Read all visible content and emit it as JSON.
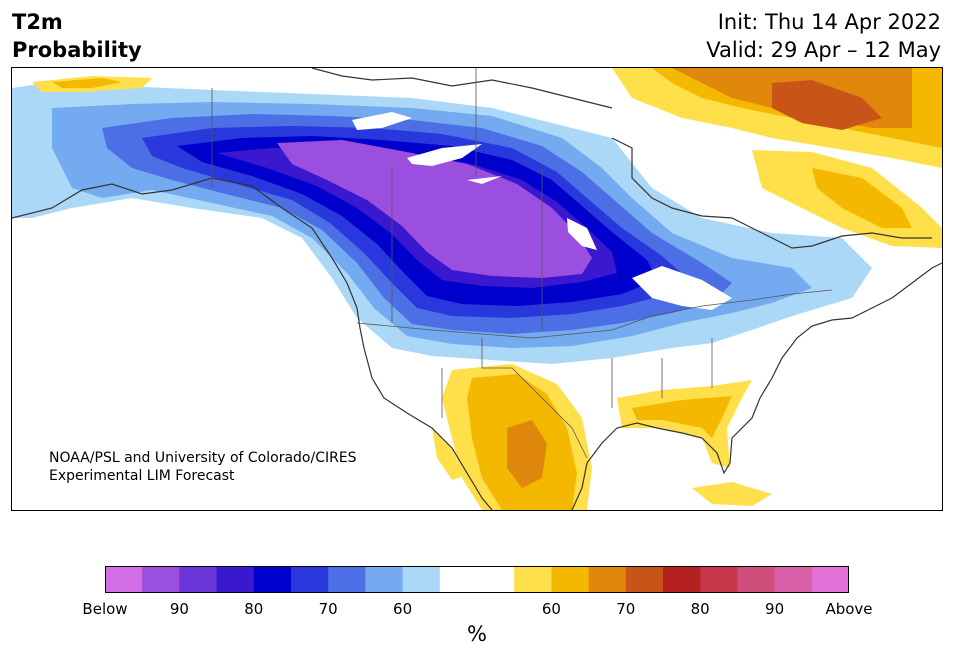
{
  "title": {
    "left_line1": "T2m",
    "left_line2": "Probability",
    "init": "Init: Thu 14 Apr 2022",
    "valid": "Valid: 29 Apr – 12 May"
  },
  "credit": {
    "line1": "NOAA/PSL and University of Colorado/CIRES",
    "line2": "Experimental LIM Forecast"
  },
  "colorbar": {
    "unit": "%",
    "colors": [
      "#d26ee6",
      "#9b4fdf",
      "#6a35d6",
      "#3a18d0",
      "#0000cc",
      "#2838dc",
      "#4d6fe6",
      "#74aaef",
      "#acd8f8",
      "#ffffff",
      "#ffffff",
      "#ffe04a",
      "#f5b800",
      "#e0880c",
      "#c85418",
      "#b42020",
      "#c43648",
      "#cf4e7c",
      "#d95fa8",
      "#e372d8"
    ],
    "ticks": [
      "Below",
      "90",
      "80",
      "70",
      "60",
      "60",
      "70",
      "80",
      "90",
      "Above"
    ]
  },
  "map": {
    "regions": {
      "below_core": "#9b4fdf",
      "below_80": "#3a18d0",
      "below_70": "#0000cc",
      "below_65": "#2838dc",
      "below_60": "#4d6fe6",
      "below_55": "#74aaef",
      "below_light": "#acd8f8",
      "above_light": "#ffe04a",
      "above_60": "#f5b800",
      "above_70": "#e0880c",
      "above_75": "#c85418"
    }
  }
}
